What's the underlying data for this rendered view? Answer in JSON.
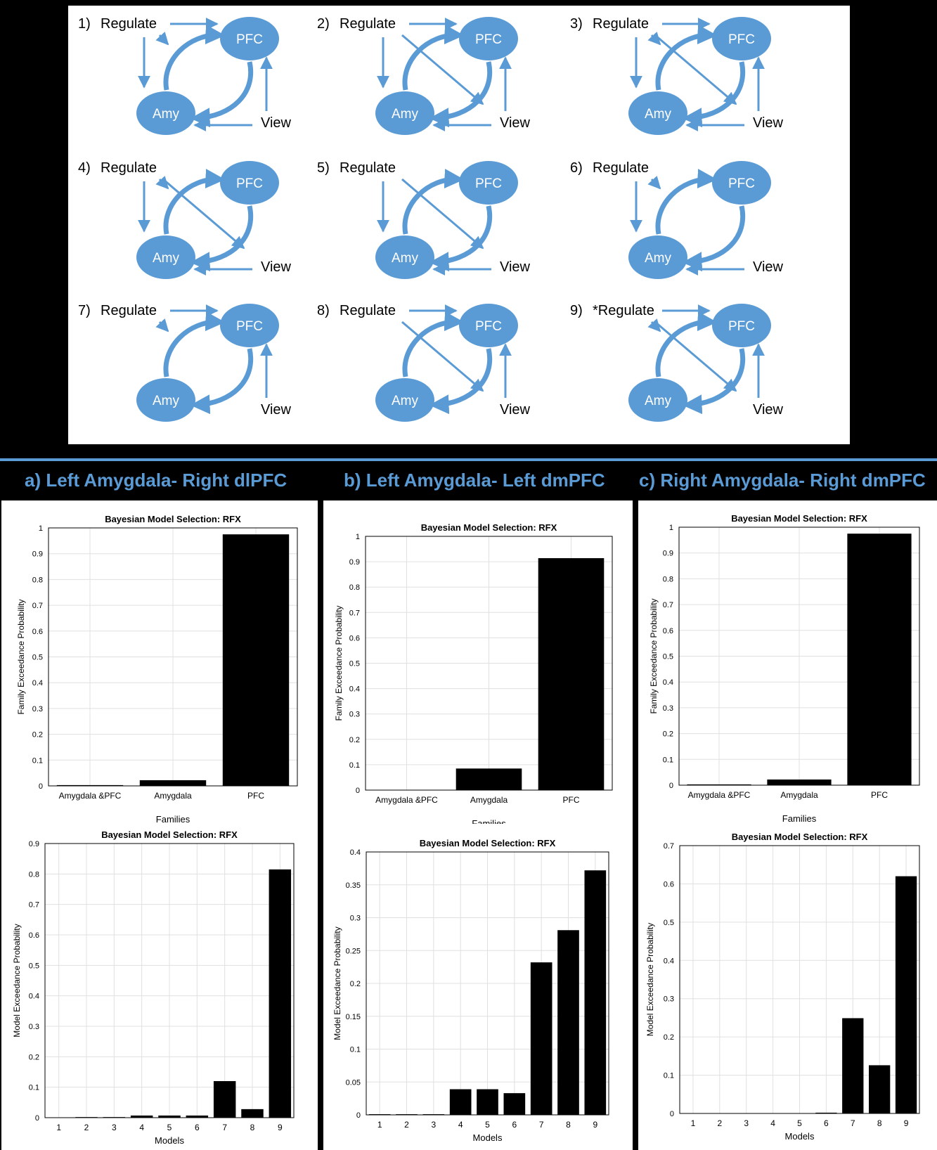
{
  "diagram": {
    "node_labels": {
      "pfc": "PFC",
      "amy": "Amy",
      "view": "View",
      "regulate": "Regulate"
    },
    "models": [
      {
        "label": "1)",
        "regulate": "Regulate",
        "reg_to_pfc": true,
        "reg_to_amy": true,
        "reg_to_amy_pfc": true,
        "reg_to_pfc_amy": false,
        "view_to_pfc": true,
        "view_to_amy": true
      },
      {
        "label": "2)",
        "regulate": "Regulate",
        "reg_to_pfc": true,
        "reg_to_amy": true,
        "reg_to_amy_pfc": false,
        "reg_to_pfc_amy": true,
        "view_to_pfc": true,
        "view_to_amy": true
      },
      {
        "label": "3)",
        "regulate": "Regulate",
        "reg_to_pfc": true,
        "reg_to_amy": true,
        "reg_to_amy_pfc": true,
        "reg_to_pfc_amy": true,
        "view_to_pfc": true,
        "view_to_amy": true
      },
      {
        "label": "4)",
        "regulate": "Regulate",
        "reg_to_pfc": false,
        "reg_to_amy": true,
        "reg_to_amy_pfc": true,
        "reg_to_pfc_amy": true,
        "view_to_pfc": false,
        "view_to_amy": true
      },
      {
        "label": "5)",
        "regulate": "Regulate",
        "reg_to_pfc": false,
        "reg_to_amy": true,
        "reg_to_amy_pfc": false,
        "reg_to_pfc_amy": true,
        "view_to_pfc": false,
        "view_to_amy": true
      },
      {
        "label": "6)",
        "regulate": "Regulate",
        "reg_to_pfc": false,
        "reg_to_amy": true,
        "reg_to_amy_pfc": true,
        "reg_to_pfc_amy": false,
        "view_to_pfc": false,
        "view_to_amy": true
      },
      {
        "label": "7)",
        "regulate": "Regulate",
        "reg_to_pfc": true,
        "reg_to_amy": false,
        "reg_to_amy_pfc": true,
        "reg_to_pfc_amy": false,
        "view_to_pfc": true,
        "view_to_amy": false
      },
      {
        "label": "8)",
        "regulate": "Regulate",
        "reg_to_pfc": true,
        "reg_to_amy": false,
        "reg_to_amy_pfc": false,
        "reg_to_pfc_amy": true,
        "view_to_pfc": true,
        "view_to_amy": false
      },
      {
        "label": "9)",
        "regulate": "*Regulate",
        "reg_to_pfc": true,
        "reg_to_amy": false,
        "reg_to_amy_pfc": true,
        "reg_to_pfc_amy": true,
        "view_to_pfc": true,
        "view_to_amy": false
      }
    ],
    "colors": {
      "node": "#5b9bd5",
      "arrow": "#5b9bd5",
      "text": "#000000"
    }
  },
  "sections": [
    {
      "title": "a) Left Amygdala- Right dlPFC"
    },
    {
      "title": "b) Left Amygdala- Left dmPFC"
    },
    {
      "title": "c) Right Amygdala- Right dmPFC"
    }
  ],
  "chart_data": [
    {
      "type": "bar",
      "title": "Bayesian Model Selection: RFX",
      "xlabel": "Families",
      "ylabel": "Family Exceedance Probability",
      "categories": [
        "Amygdala &PFC",
        "Amygdala",
        "PFC"
      ],
      "values": [
        0.003,
        0.022,
        0.975
      ],
      "ylim": [
        0,
        1
      ],
      "yticks": [
        "0",
        "0.1",
        "0.2",
        "0.3",
        "0.4",
        "0.5",
        "0.6",
        "0.7",
        "0.8",
        "0.9",
        "1"
      ],
      "grid": true
    },
    {
      "type": "bar",
      "title": "Bayesian Model Selection: RFX",
      "xlabel": "Models",
      "ylabel": "Model Exceedance Probability",
      "categories": [
        "1",
        "2",
        "3",
        "4",
        "5",
        "6",
        "7",
        "8",
        "9"
      ],
      "values": [
        0.001,
        0.002,
        0.002,
        0.007,
        0.007,
        0.007,
        0.12,
        0.028,
        0.815
      ],
      "ylim": [
        0,
        0.9
      ],
      "yticks": [
        "0",
        "0.1",
        "0.2",
        "0.3",
        "0.4",
        "0.5",
        "0.6",
        "0.7",
        "0.8",
        "0.9"
      ],
      "grid": true
    },
    {
      "type": "bar",
      "title": "Bayesian Model Selection: RFX",
      "xlabel": "Families",
      "ylabel": "Family Exceedance Probability",
      "categories": [
        "Amygdala  &PFC",
        "Amygdala",
        "PFC"
      ],
      "values": [
        0.001,
        0.085,
        0.914
      ],
      "ylim": [
        0,
        1
      ],
      "yticks": [
        "0",
        "0.1",
        "0.2",
        "0.3",
        "0.4",
        "0.5",
        "0.6",
        "0.7",
        "0.8",
        "0.9",
        "1"
      ],
      "grid": true
    },
    {
      "type": "bar",
      "title": "Bayesian Model Selection: RFX",
      "xlabel": "Models",
      "ylabel": "Model Exceedance Probability",
      "categories": [
        "1",
        "2",
        "3",
        "4",
        "5",
        "6",
        "7",
        "8",
        "9"
      ],
      "values": [
        0.001,
        0.001,
        0.001,
        0.039,
        0.039,
        0.033,
        0.232,
        0.281,
        0.372
      ],
      "ylim": [
        0,
        0.4
      ],
      "yticks": [
        "0",
        "0.05",
        "0.1",
        "0.15",
        "0.2",
        "0.25",
        "0.3",
        "0.35",
        "0.4"
      ],
      "grid": true
    },
    {
      "type": "bar",
      "title": "Bayesian Model Selection: RFX",
      "xlabel": "Families",
      "ylabel": "Family Exceedance Probability",
      "categories": [
        "Amygdala  &PFC",
        "Amygdala",
        "PFC"
      ],
      "values": [
        0.003,
        0.022,
        0.975
      ],
      "ylim": [
        0,
        1
      ],
      "yticks": [
        "0",
        "0.1",
        "0.2",
        "0.3",
        "0.4",
        "0.5",
        "0.6",
        "0.7",
        "0.8",
        "0.9",
        "1"
      ],
      "grid": true
    },
    {
      "type": "bar",
      "title": "Bayesian Model Selection: RFX",
      "xlabel": "Models",
      "ylabel": "Model Exceedance Probability",
      "categories": [
        "1",
        "2",
        "3",
        "4",
        "5",
        "6",
        "7",
        "8",
        "9"
      ],
      "values": [
        0.0,
        0.0,
        0.0,
        0.0,
        0.0,
        0.002,
        0.249,
        0.126,
        0.62
      ],
      "ylim": [
        0,
        0.7
      ],
      "yticks": [
        "0",
        "0.1",
        "0.2",
        "0.3",
        "0.4",
        "0.5",
        "0.6",
        "0.7"
      ],
      "grid": true
    }
  ]
}
